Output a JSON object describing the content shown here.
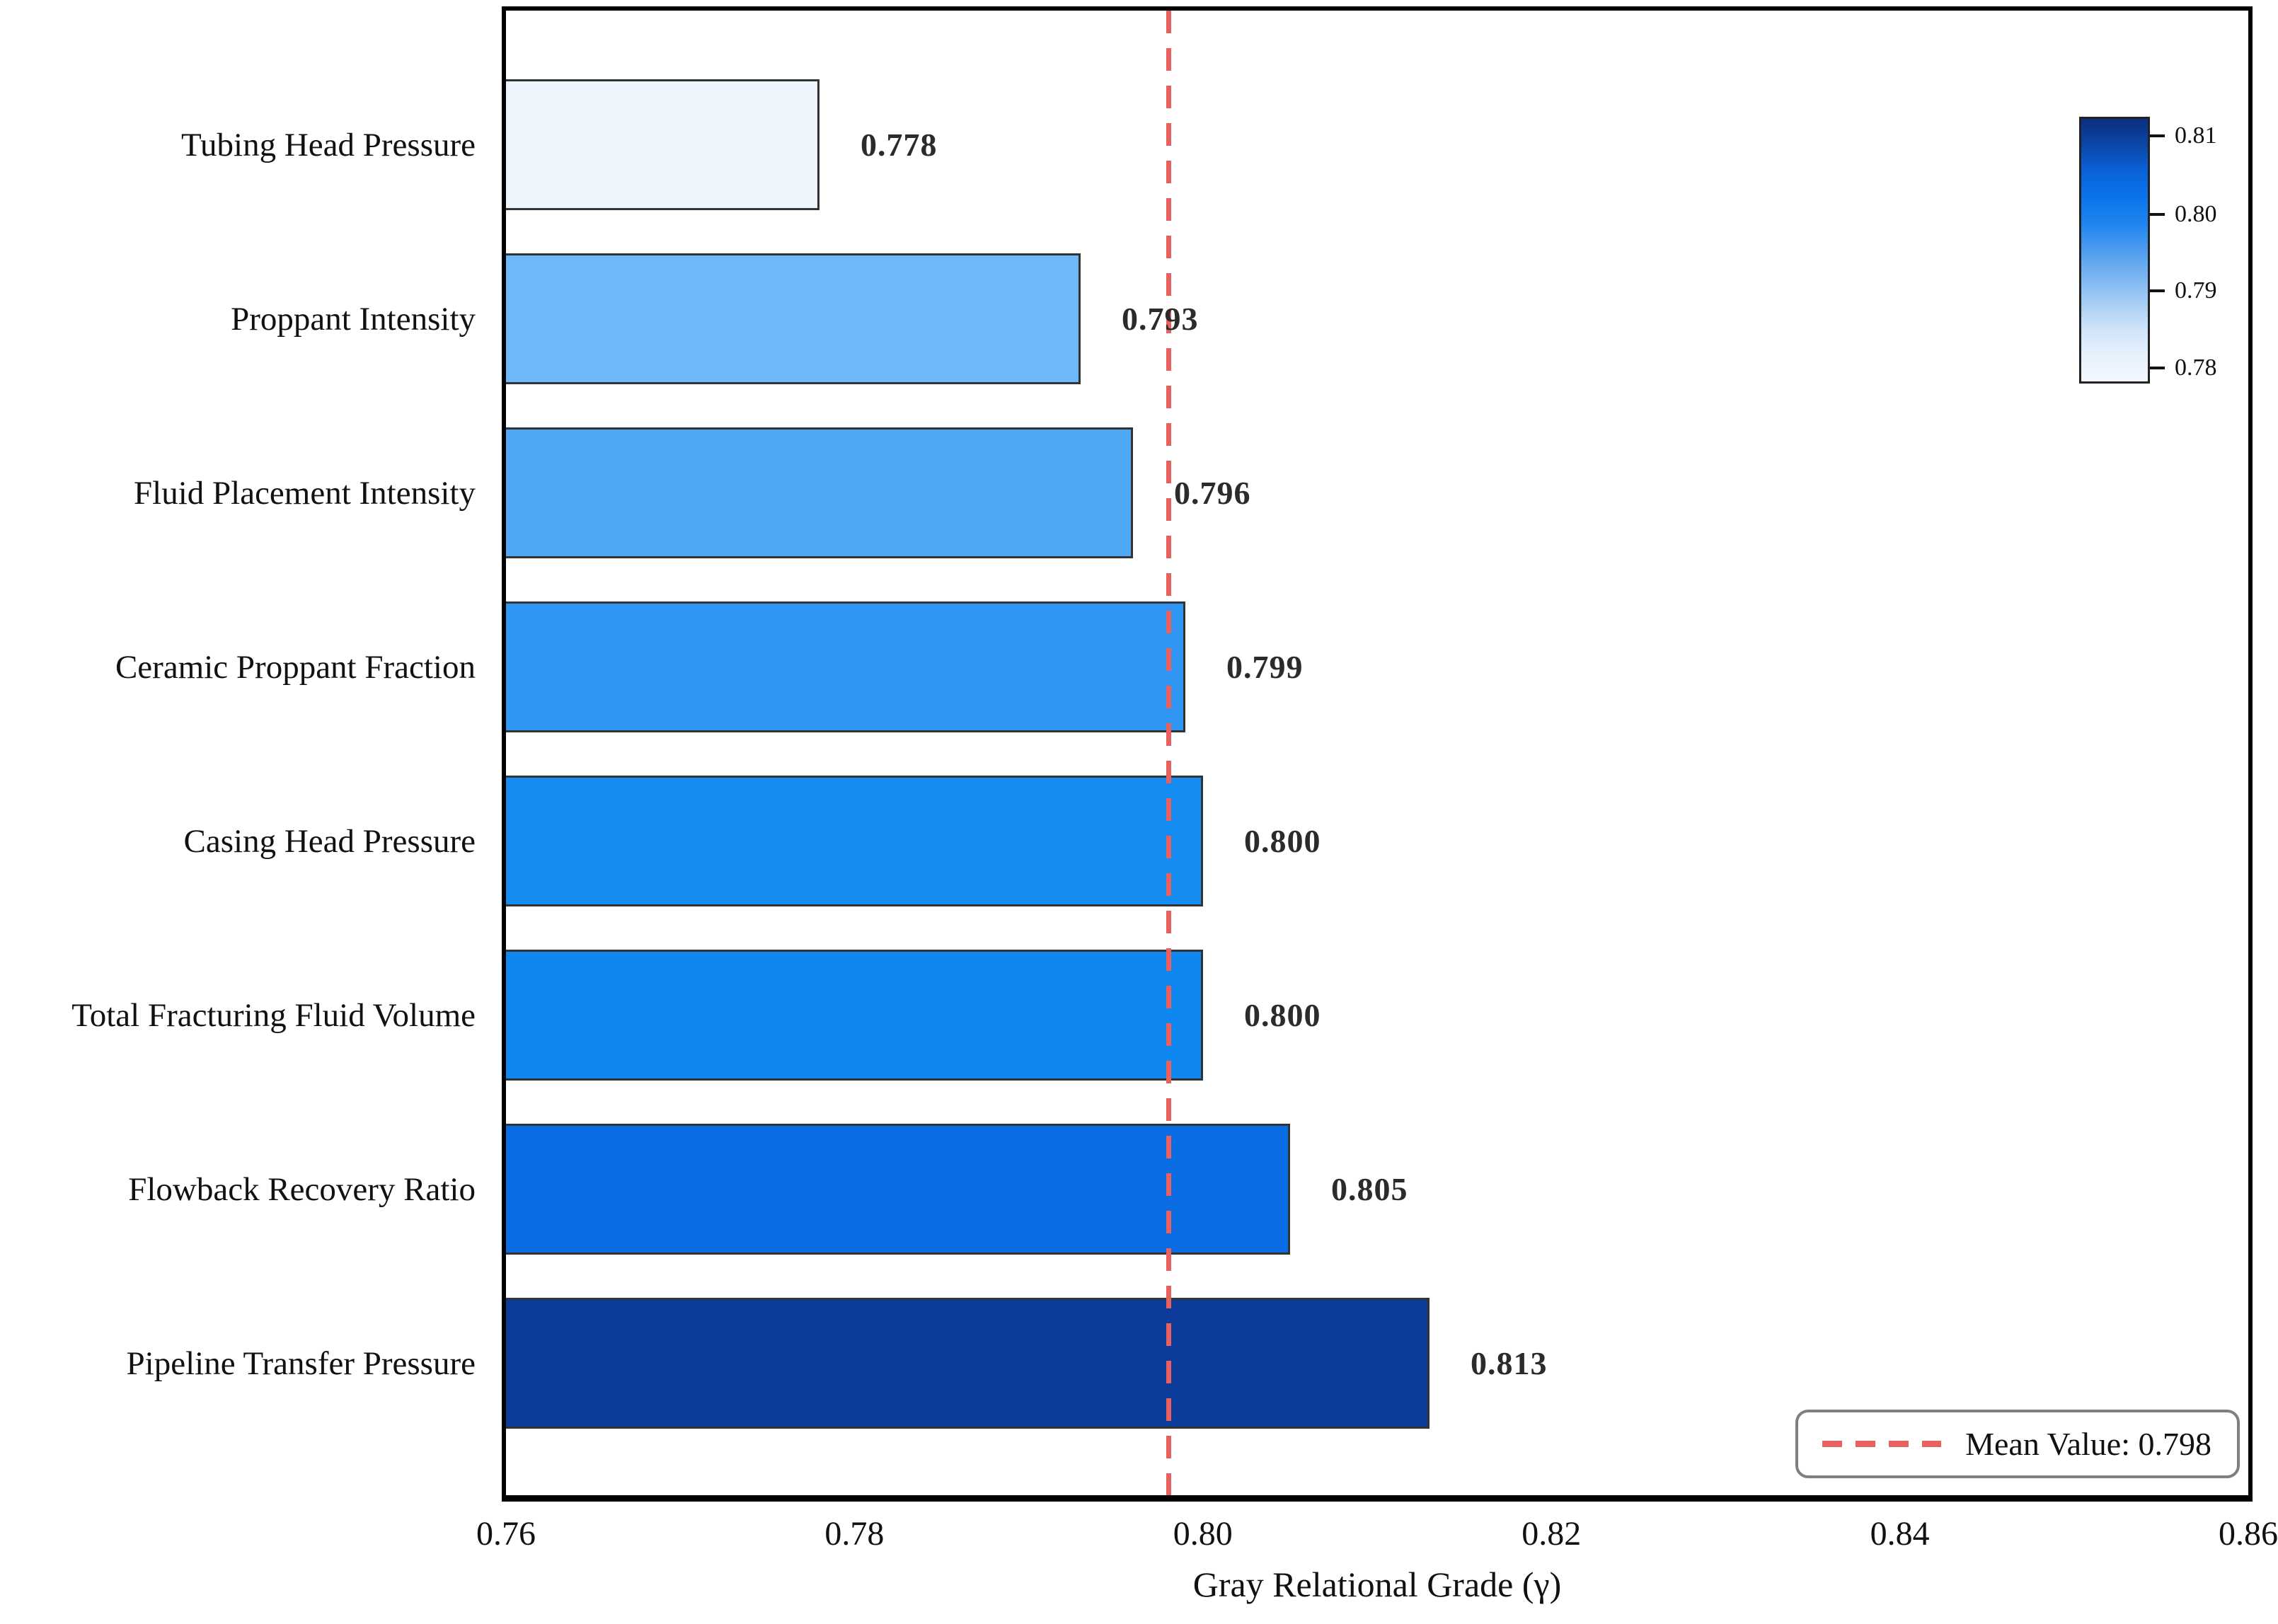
{
  "figure": {
    "background": "#ffffff"
  },
  "chart_data": {
    "type": "bar",
    "orientation": "horizontal",
    "title": "",
    "xlabel": "Gray Relational Grade (γ)",
    "ylabel": "",
    "xlim": [
      0.76,
      0.86
    ],
    "x_tick_labels": [
      "0.76",
      "0.78",
      "0.80",
      "0.82",
      "0.84",
      "0.86"
    ],
    "grid": false,
    "categories": [
      "Tubing Head Pressure",
      "Proppant Intensity",
      "Fluid Placement Intensity",
      "Ceramic Proppant Fraction",
      "Casing Head Pressure",
      "Total Fracturing Fluid Volume",
      "Flowback Recovery Ratio",
      "Pipeline Transfer Pressure"
    ],
    "values": [
      0.778,
      0.793,
      0.796,
      0.799,
      0.8,
      0.8,
      0.805,
      0.813
    ],
    "value_labels": [
      "0.778",
      "0.793",
      "0.796",
      "0.799",
      "0.800",
      "0.800",
      "0.805",
      "0.813"
    ],
    "bar_colors": [
      "#edf4fc",
      "#6cb8f8",
      "#4fa8f6",
      "#2f97f3",
      "#158cf1",
      "#0f87f0",
      "#0a6de3",
      "#0b3c9a"
    ],
    "bar_edge_color": "#333333",
    "mean_line": {
      "value": 0.798,
      "color": "#e8615e",
      "style": "dashed"
    },
    "legend": {
      "label": "Mean Value: 0.798",
      "position": "lower right"
    },
    "colorbar": {
      "position": "upper right",
      "tick_labels": [
        "0.81",
        "0.80",
        "0.79",
        "0.78"
      ],
      "tick_positions_pct": [
        6.5,
        36.3,
        65.5,
        94.9
      ],
      "gradient_top_to_bottom": [
        "#0a2f7e",
        "#0b46a8",
        "#0a62d8",
        "#0a74ec",
        "#1f85ee",
        "#4d9def",
        "#7ab5f1",
        "#a6cdf4",
        "#cfe3f9",
        "#e8f1fc",
        "#f2f8fe"
      ]
    }
  }
}
